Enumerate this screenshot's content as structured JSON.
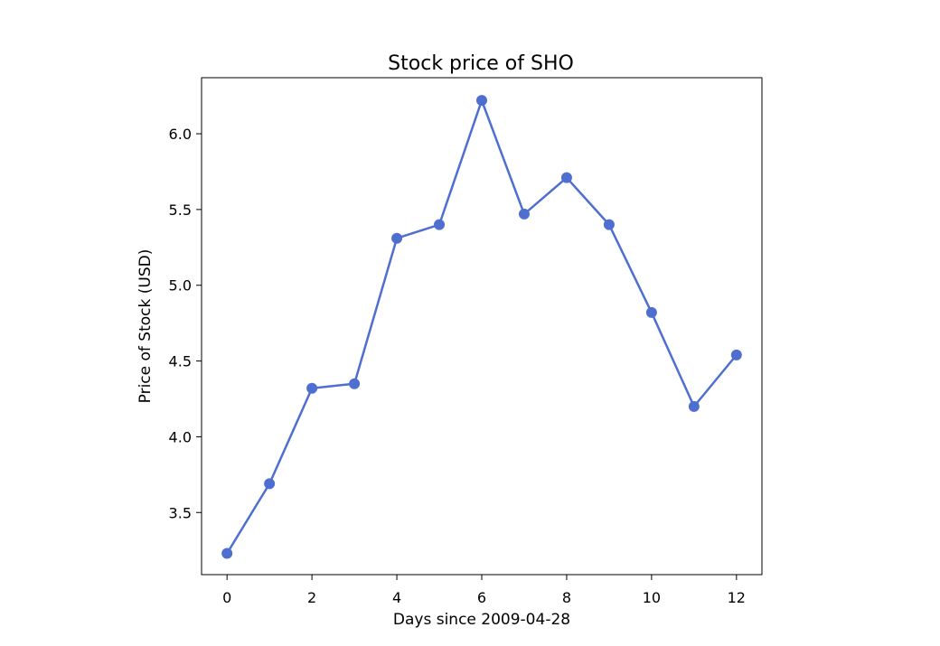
{
  "chart_data": {
    "type": "line",
    "title": "Stock price of SHO",
    "xlabel": "Days since 2009-04-28",
    "ylabel": "Price of Stock (USD)",
    "x": [
      0,
      1,
      2,
      3,
      4,
      5,
      6,
      7,
      8,
      9,
      10,
      11,
      12
    ],
    "series": [
      {
        "values": [
          3.23,
          3.69,
          4.32,
          4.35,
          5.31,
          5.4,
          6.22,
          5.47,
          5.71,
          5.4,
          4.82,
          4.2,
          4.54
        ],
        "color": "#4f6fd0"
      }
    ],
    "xlim": [
      -0.6,
      12.6
    ],
    "ylim": [
      3.09,
      6.37
    ],
    "xticks": [
      0,
      2,
      4,
      6,
      8,
      10,
      12
    ],
    "xtick_labels": [
      "0",
      "2",
      "4",
      "6",
      "8",
      "10",
      "12"
    ],
    "yticks": [
      3.5,
      4.0,
      4.5,
      5.0,
      5.5,
      6.0
    ],
    "ytick_labels": [
      "3.5",
      "4.0",
      "4.5",
      "5.0",
      "5.5",
      "6.0"
    ],
    "grid": false,
    "markers": true
  }
}
